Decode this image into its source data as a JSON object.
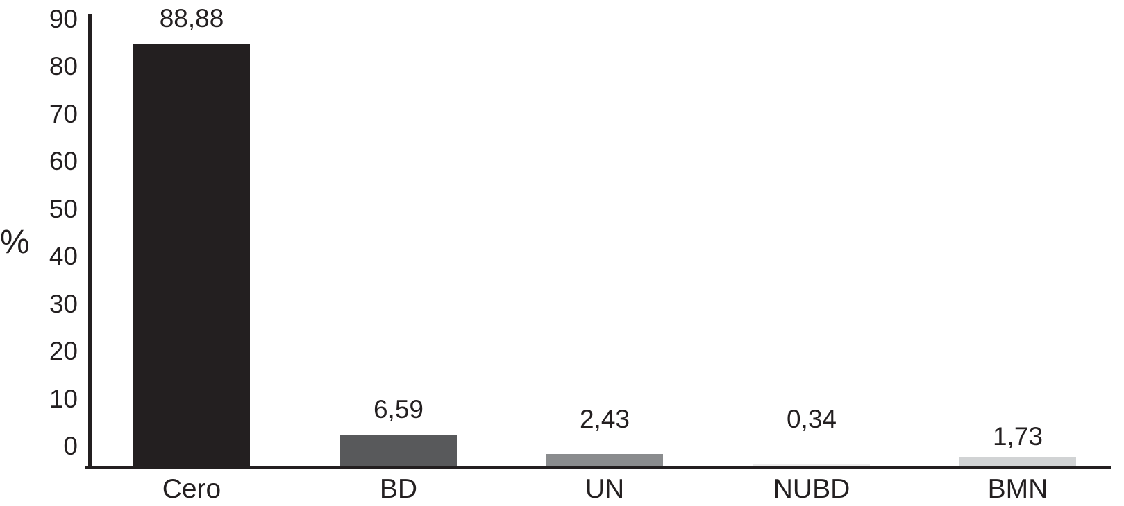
{
  "chart_data": {
    "type": "bar",
    "title": "",
    "ylabel": "%",
    "xlabel": "",
    "categories": [
      "Cero",
      "BD",
      "UN",
      "NUBD",
      "BMN"
    ],
    "values": [
      88.88,
      6.59,
      2.43,
      0.34,
      1.73
    ],
    "value_labels": [
      "88,88",
      "6,59",
      "2,43",
      "0,34",
      "1,73"
    ],
    "bar_colors": [
      "#231f20",
      "#58595b",
      "#8a8c8e",
      "#ececec",
      "#d1d3d4"
    ],
    "yticks": [
      90,
      80,
      70,
      60,
      50,
      40,
      30,
      20,
      10,
      0
    ],
    "ylim": [
      0,
      90
    ],
    "grid": false,
    "legend_position": "none",
    "axis_color": "#231f20",
    "text_color": "#231f20",
    "background_color": "#ffffff"
  }
}
